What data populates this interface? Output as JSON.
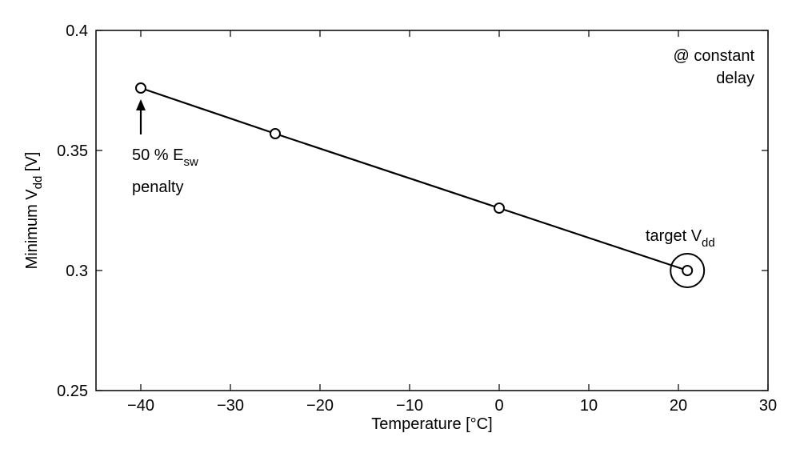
{
  "chart_data": {
    "type": "line",
    "xlabel": "Temperature [°C]",
    "ylabel": {
      "prefix": "Minimum V",
      "sub": "dd",
      "suffix": " [V]"
    },
    "xlim": [
      -45,
      30
    ],
    "ylim": [
      0.25,
      0.4
    ],
    "xticks": [
      -40,
      -30,
      -20,
      -10,
      0,
      10,
      20,
      30
    ],
    "yticks": [
      0.25,
      0.3,
      0.35,
      0.4
    ],
    "xtick_labels": [
      "−40",
      "−30",
      "−20",
      "−10",
      "0",
      "10",
      "20",
      "30"
    ],
    "ytick_labels": [
      "0.25",
      "0.3",
      "0.35",
      "0.4"
    ],
    "grid": false,
    "series": [
      {
        "x": [
          -40,
          -25,
          0,
          21
        ],
        "y": [
          0.376,
          0.357,
          0.326,
          0.3
        ]
      }
    ],
    "annotations": {
      "penalty": {
        "line1_prefix": "50 % E",
        "line1_sub": "sw",
        "line2": "penalty",
        "arrow_to": [
          -40,
          0.376
        ]
      },
      "target": {
        "prefix": "target V",
        "sub": "dd",
        "point": [
          21,
          0.3
        ]
      },
      "constant": {
        "line1": "@ constant",
        "line2": "delay"
      }
    }
  }
}
